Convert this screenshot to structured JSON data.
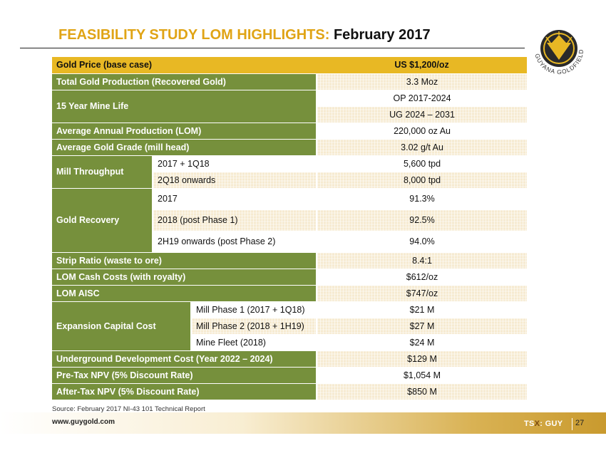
{
  "header": {
    "title_highlight": "FEASIBILITY STUDY LOM HIGHLIGHTS:",
    "title_date": "February 2017"
  },
  "logo": {
    "icon": "guyana-goldfields-emblem-icon",
    "text": "GUYANA GOLDFIELDS INC.",
    "colors": {
      "gold": "#e8b824",
      "dark": "#2a2a2a"
    }
  },
  "table": {
    "gold_price": {
      "label": "Gold Price (base case)",
      "value": "US $1,200/oz"
    },
    "total_production": {
      "label": "Total Gold Production (Recovered Gold)",
      "value": "3.3 Moz"
    },
    "mine_life": {
      "label": "15 Year Mine Life",
      "op": "OP 2017-2024",
      "ug": "UG 2024 – 2031"
    },
    "avg_annual_production": {
      "label": "Average Annual Production (LOM)",
      "value": "220,000 oz Au"
    },
    "avg_grade": {
      "label": "Average Gold Grade (mill head)",
      "value": "3.02 g/t Au"
    },
    "mill_throughput": {
      "label": "Mill Throughput",
      "rows": [
        {
          "period": "2017 + 1Q18",
          "value": "5,600 tpd"
        },
        {
          "period": "2Q18 onwards",
          "value": "8,000 tpd"
        }
      ]
    },
    "gold_recovery": {
      "label": "Gold Recovery",
      "rows": [
        {
          "period": "2017",
          "value": "91.3%"
        },
        {
          "period": "2018 (post Phase 1)",
          "value": "92.5%"
        },
        {
          "period": "2H19 onwards (post Phase 2)",
          "value": "94.0%"
        }
      ]
    },
    "strip_ratio": {
      "label": "Strip Ratio (waste to ore)",
      "value": "8.4:1"
    },
    "cash_costs": {
      "label": "LOM Cash Costs (with royalty)",
      "value": "$612/oz"
    },
    "aisc": {
      "label": "LOM AISC",
      "value": "$747/oz"
    },
    "expansion_capital": {
      "label": "Expansion Capital Cost",
      "rows": [
        {
          "item": "Mill Phase 1 (2017 + 1Q18)",
          "value": "$21 M"
        },
        {
          "item": "Mill Phase 2 (2018 + 1H19)",
          "value": "$27 M"
        },
        {
          "item": "Mine Fleet (2018)",
          "value": "$24 M"
        }
      ]
    },
    "underground_dev": {
      "label": "Underground Development Cost (Year 2022 – 2024)",
      "value": "$129 M"
    },
    "pre_tax_npv": {
      "label": "Pre-Tax NPV (5% Discount Rate)",
      "value": "$1,054 M"
    },
    "after_tax_npv": {
      "label": "After-Tax NPV (5% Discount Rate)",
      "value": "$850 M"
    }
  },
  "source": "Source: February 2017 NI-43 101 Technical Report",
  "footer": {
    "url": "www.guygold.com",
    "ticker_prefix": "TS",
    "ticker_x": "X",
    "ticker_symbol": ": GUY",
    "page_number": "27"
  },
  "colors": {
    "title_gold": "#e0a416",
    "header_gold": "#e8b824",
    "label_green": "#76903c",
    "value_tint": "#f6ead0"
  }
}
